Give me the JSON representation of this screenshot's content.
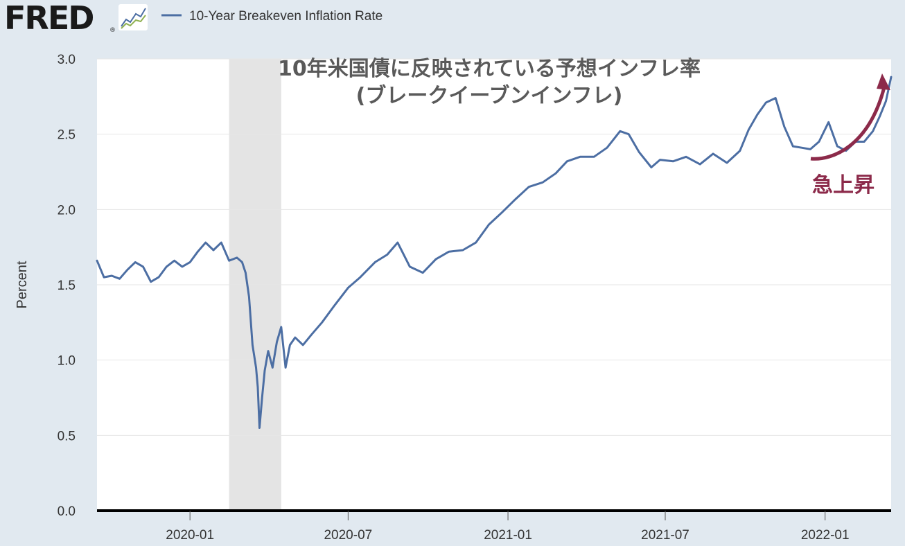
{
  "header": {
    "logo_text": "FRED",
    "logo_registered": "®",
    "legend_label": "10-Year Breakeven Inflation Rate"
  },
  "colors": {
    "series": "#4c6ea3",
    "recession": "#e4e4e4",
    "grid": "#e6e6e6",
    "background": "#e1e9f0",
    "plot_background": "#ffffff",
    "annotation": "#8c2a4a",
    "title": "#5a5a5a",
    "axis_text": "#333333"
  },
  "annotation": {
    "text": "急上昇"
  },
  "chart_data": {
    "type": "line",
    "title": "10年米国債に反映されている予想インフレ率",
    "subtitle": "(ブレークイーブンインフレ)",
    "xlabel": "",
    "ylabel": "Percent",
    "ylim": [
      0,
      3.0
    ],
    "xlim": [
      "2019-09-16",
      "2022-03-18"
    ],
    "yticks": [
      "0.0",
      "0.5",
      "1.0",
      "1.5",
      "2.0",
      "2.5",
      "3.0"
    ],
    "xticks": [
      "2020-01",
      "2020-07",
      "2021-01",
      "2021-07",
      "2022-01"
    ],
    "grid": true,
    "legend_position": "top-left",
    "recession_shading": [
      "2020-02-15",
      "2020-04-15"
    ],
    "series": [
      {
        "name": "10-Year Breakeven Inflation Rate",
        "x": [
          "2019-09-16",
          "2019-09-24",
          "2019-10-03",
          "2019-10-12",
          "2019-10-21",
          "2019-10-30",
          "2019-11-08",
          "2019-11-17",
          "2019-11-26",
          "2019-12-05",
          "2019-12-14",
          "2019-12-23",
          "2020-01-01",
          "2020-01-10",
          "2020-01-19",
          "2020-01-28",
          "2020-02-06",
          "2020-02-15",
          "2020-02-24",
          "2020-03-01",
          "2020-03-05",
          "2020-03-09",
          "2020-03-13",
          "2020-03-17",
          "2020-03-19",
          "2020-03-21",
          "2020-03-24",
          "2020-03-27",
          "2020-03-31",
          "2020-04-05",
          "2020-04-10",
          "2020-04-15",
          "2020-04-20",
          "2020-04-25",
          "2020-05-01",
          "2020-05-10",
          "2020-05-20",
          "2020-06-01",
          "2020-06-15",
          "2020-07-01",
          "2020-07-15",
          "2020-08-01",
          "2020-08-15",
          "2020-08-27",
          "2020-09-10",
          "2020-09-25",
          "2020-10-10",
          "2020-10-25",
          "2020-11-10",
          "2020-11-25",
          "2020-12-10",
          "2020-12-25",
          "2021-01-10",
          "2021-01-25",
          "2021-02-10",
          "2021-02-25",
          "2021-03-10",
          "2021-03-25",
          "2021-04-10",
          "2021-04-25",
          "2021-05-10",
          "2021-05-20",
          "2021-06-01",
          "2021-06-15",
          "2021-06-25",
          "2021-07-10",
          "2021-07-25",
          "2021-08-10",
          "2021-08-25",
          "2021-09-10",
          "2021-09-25",
          "2021-10-05",
          "2021-10-15",
          "2021-10-25",
          "2021-11-05",
          "2021-11-15",
          "2021-11-25",
          "2021-12-05",
          "2021-12-15",
          "2021-12-25",
          "2022-01-05",
          "2022-01-15",
          "2022-01-25",
          "2022-02-05",
          "2022-02-15",
          "2022-02-25",
          "2022-03-05",
          "2022-03-12",
          "2022-03-18"
        ],
        "y": [
          1.66,
          1.55,
          1.56,
          1.54,
          1.6,
          1.65,
          1.62,
          1.52,
          1.55,
          1.62,
          1.66,
          1.62,
          1.65,
          1.72,
          1.78,
          1.73,
          1.78,
          1.66,
          1.68,
          1.65,
          1.58,
          1.42,
          1.1,
          0.95,
          0.82,
          0.55,
          0.75,
          0.93,
          1.06,
          0.95,
          1.12,
          1.22,
          0.95,
          1.1,
          1.15,
          1.1,
          1.17,
          1.25,
          1.36,
          1.48,
          1.55,
          1.65,
          1.7,
          1.78,
          1.62,
          1.58,
          1.67,
          1.72,
          1.73,
          1.78,
          1.9,
          1.98,
          2.07,
          2.15,
          2.18,
          2.24,
          2.32,
          2.35,
          2.35,
          2.41,
          2.52,
          2.5,
          2.38,
          2.28,
          2.33,
          2.32,
          2.35,
          2.3,
          2.37,
          2.31,
          2.39,
          2.53,
          2.63,
          2.71,
          2.74,
          2.55,
          2.42,
          2.41,
          2.4,
          2.45,
          2.58,
          2.42,
          2.39,
          2.45,
          2.45,
          2.52,
          2.62,
          2.72,
          2.88
        ]
      }
    ]
  }
}
